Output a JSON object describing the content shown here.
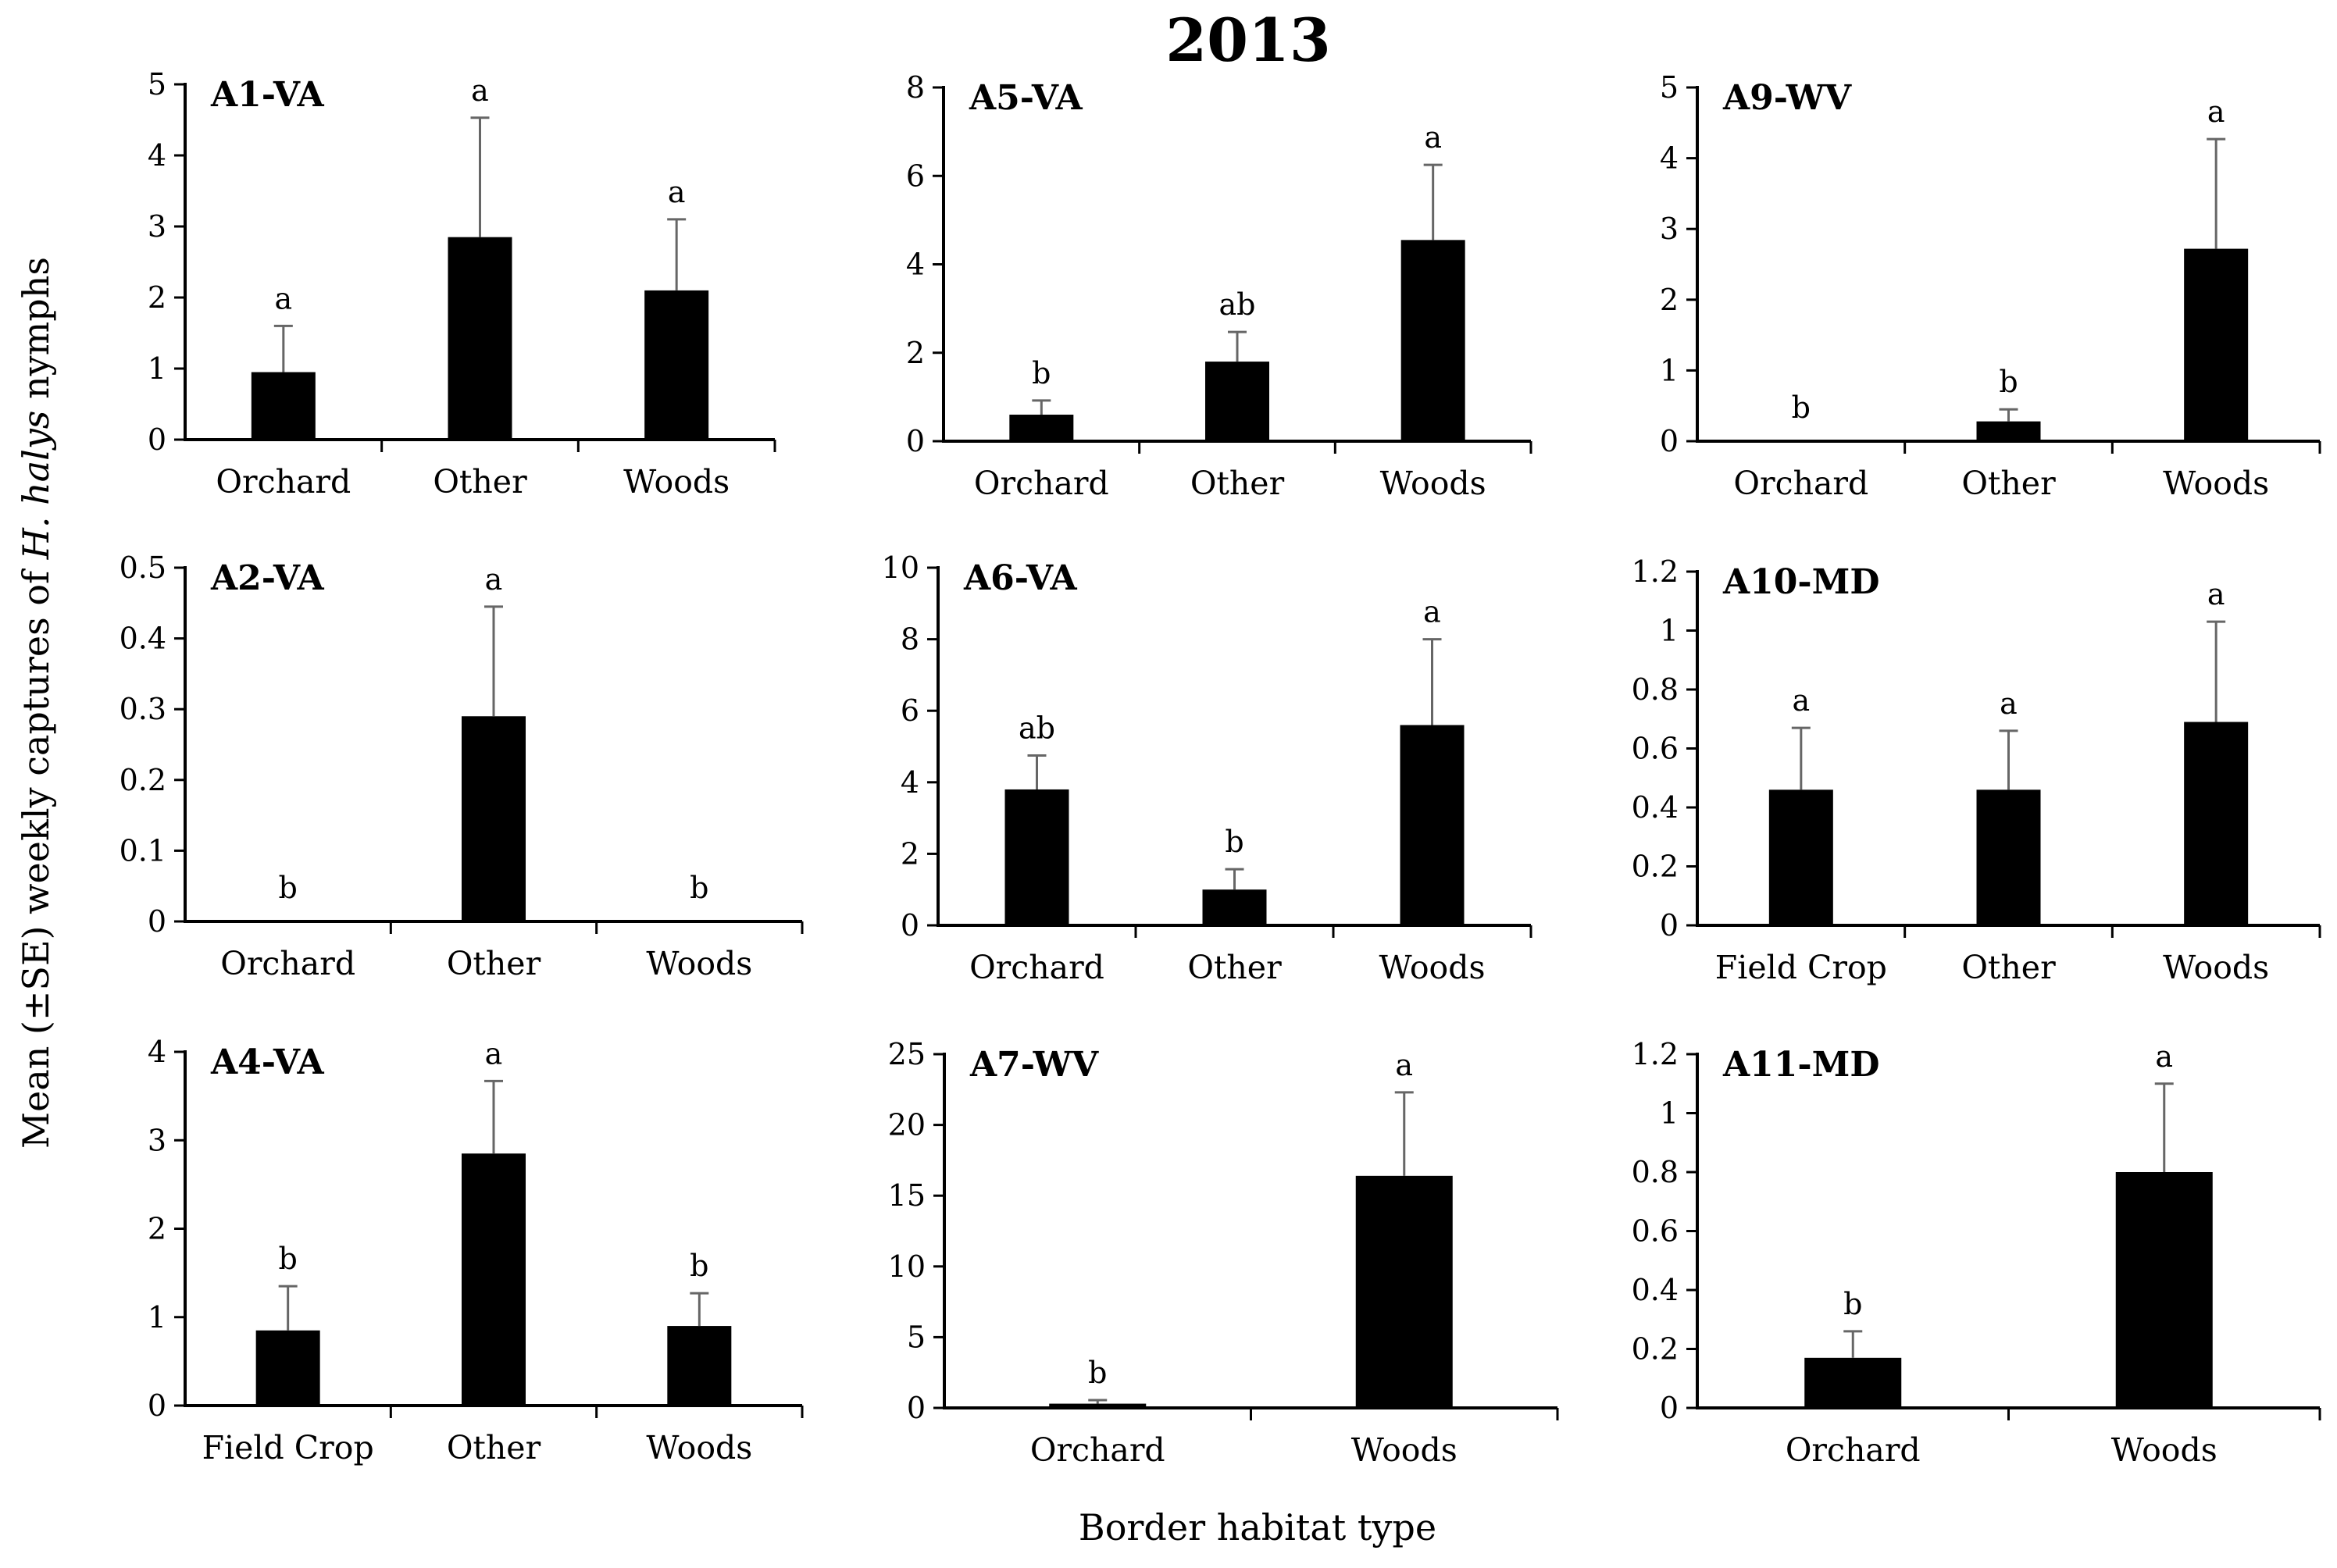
{
  "figure_title": "2013",
  "y_axis_label": {
    "prefix": "Mean (±SE) weekly captures of ",
    "species": "H. halys",
    "suffix": " nymphs"
  },
  "x_axis_label": "Border habitat type",
  "colors": {
    "bar": "#000000",
    "error_bar": "#666666",
    "axis": "#000000"
  },
  "chart_data": [
    {
      "type": "bar",
      "panel": "A1-VA",
      "categories": [
        "Orchard",
        "Other",
        "Woods"
      ],
      "values": [
        0.95,
        2.85,
        2.1
      ],
      "errors": [
        0.65,
        1.68,
        1.0
      ],
      "letters": [
        "a",
        "a",
        "a"
      ],
      "ylim": [
        0,
        5
      ],
      "yticks": [
        "0",
        "1",
        "2",
        "3",
        "4",
        "5"
      ],
      "yticks_values": [
        0,
        1,
        2,
        3,
        4,
        5
      ]
    },
    {
      "type": "bar",
      "panel": "A5-VA",
      "categories": [
        "Orchard",
        "Other",
        "Woods"
      ],
      "values": [
        0.6,
        1.8,
        4.55
      ],
      "errors": [
        0.32,
        0.67,
        1.7
      ],
      "letters": [
        "b",
        "ab",
        "a"
      ],
      "ylim": [
        0,
        8
      ],
      "yticks": [
        "0",
        "2",
        "4",
        "6",
        "8"
      ],
      "yticks_values": [
        0,
        2,
        4,
        6,
        8
      ]
    },
    {
      "type": "bar",
      "panel": "A9-WV",
      "categories": [
        "Orchard",
        "Other",
        "Woods"
      ],
      "values": [
        0,
        0.28,
        2.72
      ],
      "errors": [
        0,
        0.17,
        1.55
      ],
      "letters": [
        "b",
        "b",
        "a"
      ],
      "ylim": [
        0,
        5
      ],
      "yticks": [
        "0",
        "1",
        "2",
        "3",
        "4",
        "5"
      ],
      "yticks_values": [
        0,
        1,
        2,
        3,
        4,
        5
      ]
    },
    {
      "type": "bar",
      "panel": "A2-VA",
      "categories": [
        "Orchard",
        "Other",
        "Woods"
      ],
      "values": [
        0,
        0.29,
        0
      ],
      "errors": [
        0,
        0.155,
        0
      ],
      "letters": [
        "b",
        "a",
        "b"
      ],
      "ylim": [
        0,
        0.5
      ],
      "yticks": [
        "0",
        "0.1",
        "0.2",
        "0.3",
        "0.4",
        "0.5"
      ],
      "yticks_values": [
        0,
        0.1,
        0.2,
        0.3,
        0.4,
        0.5
      ]
    },
    {
      "type": "bar",
      "panel": "A6-VA",
      "categories": [
        "Orchard",
        "Other",
        "Woods"
      ],
      "values": [
        3.8,
        1.0,
        5.6
      ],
      "errors": [
        0.95,
        0.57,
        2.4
      ],
      "letters": [
        "ab",
        "b",
        "a"
      ],
      "ylim": [
        0,
        10
      ],
      "yticks": [
        "0",
        "2",
        "4",
        "6",
        "8",
        "10"
      ],
      "yticks_values": [
        0,
        2,
        4,
        6,
        8,
        10
      ]
    },
    {
      "type": "bar",
      "panel": "A10-MD",
      "categories": [
        "Field Crop",
        "Other",
        "Woods"
      ],
      "values": [
        0.46,
        0.46,
        0.69
      ],
      "errors": [
        0.21,
        0.2,
        0.34
      ],
      "letters": [
        "a",
        "a",
        "a"
      ],
      "ylim": [
        0,
        1.2
      ],
      "yticks": [
        "0",
        "0.2",
        "0.4",
        "0.6",
        "0.8",
        "1",
        "1.2"
      ],
      "yticks_values": [
        0,
        0.2,
        0.4,
        0.6,
        0.8,
        1,
        1.2
      ]
    },
    {
      "type": "bar",
      "panel": "A4-VA",
      "categories": [
        "Field Crop",
        "Other",
        "Woods"
      ],
      "values": [
        0.85,
        2.85,
        0.9
      ],
      "errors": [
        0.5,
        0.82,
        0.37
      ],
      "letters": [
        "b",
        "a",
        "b"
      ],
      "ylim": [
        0,
        4
      ],
      "yticks": [
        "0",
        "1",
        "2",
        "3",
        "4"
      ],
      "yticks_values": [
        0,
        1,
        2,
        3,
        4
      ]
    },
    {
      "type": "bar",
      "panel": "A7-WV",
      "categories": [
        "Orchard",
        "Woods"
      ],
      "values": [
        0.3,
        16.4
      ],
      "errors": [
        0.25,
        5.9
      ],
      "letters": [
        "b",
        "a"
      ],
      "ylim": [
        0,
        25
      ],
      "yticks": [
        "0",
        "5",
        "10",
        "15",
        "20",
        "25"
      ],
      "yticks_values": [
        0,
        5,
        10,
        15,
        20,
        25
      ]
    },
    {
      "type": "bar",
      "panel": "A11-MD",
      "categories": [
        "Orchard",
        "Woods"
      ],
      "values": [
        0.17,
        0.8
      ],
      "errors": [
        0.09,
        0.3
      ],
      "letters": [
        "b",
        "a"
      ],
      "ylim": [
        0,
        1.2
      ],
      "yticks": [
        "0",
        "0.2",
        "0.4",
        "0.6",
        "0.8",
        "1",
        "1.2"
      ],
      "yticks_values": [
        0,
        0.2,
        0.4,
        0.6,
        0.8,
        1,
        1.2
      ]
    }
  ]
}
